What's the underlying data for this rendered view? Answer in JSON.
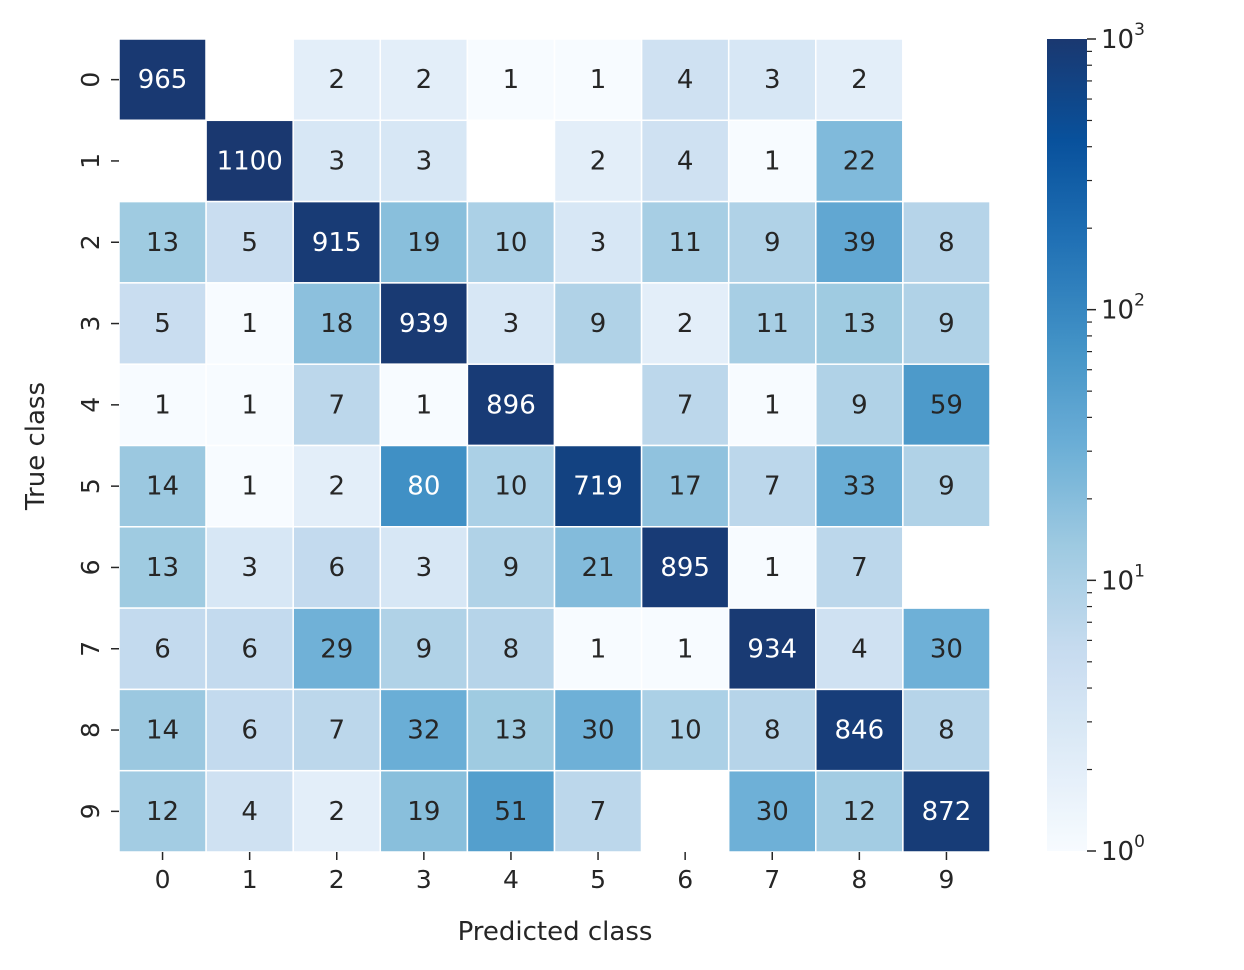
{
  "chart_data": {
    "type": "heatmap",
    "title": "",
    "xlabel": "Predicted class",
    "ylabel": "True class",
    "x_categories": [
      "0",
      "1",
      "2",
      "3",
      "4",
      "5",
      "6",
      "7",
      "8",
      "9"
    ],
    "y_categories": [
      "0",
      "1",
      "2",
      "3",
      "4",
      "5",
      "6",
      "7",
      "8",
      "9"
    ],
    "values": [
      [
        965,
        0,
        2,
        2,
        1,
        1,
        4,
        3,
        2,
        0
      ],
      [
        0,
        1100,
        3,
        3,
        0,
        2,
        4,
        1,
        22,
        0
      ],
      [
        13,
        5,
        915,
        19,
        10,
        3,
        11,
        9,
        39,
        8
      ],
      [
        5,
        1,
        18,
        939,
        3,
        9,
        2,
        11,
        13,
        9
      ],
      [
        1,
        1,
        7,
        1,
        896,
        0,
        7,
        1,
        9,
        59
      ],
      [
        14,
        1,
        2,
        80,
        10,
        719,
        17,
        7,
        33,
        9
      ],
      [
        13,
        3,
        6,
        3,
        9,
        21,
        895,
        1,
        7,
        0
      ],
      [
        6,
        6,
        29,
        9,
        8,
        1,
        1,
        934,
        4,
        30
      ],
      [
        14,
        6,
        7,
        32,
        13,
        30,
        10,
        8,
        846,
        8
      ],
      [
        12,
        4,
        2,
        19,
        51,
        7,
        0,
        30,
        12,
        872
      ]
    ],
    "zero_cells_blank": true,
    "color_scale": "log",
    "colormap": "Blues",
    "colormap_stops": [
      "#f7fbff",
      "#deebf7",
      "#c6dbef",
      "#9ecae1",
      "#6baed6",
      "#4292c6",
      "#2171b5",
      "#08519c",
      "#08306b"
    ],
    "colormap_max_color": "#1a3870",
    "vmin": 1,
    "vmax": 1000,
    "colorbar": {
      "ticks": [
        {
          "base": "10",
          "exp": "3",
          "value": 1000
        },
        {
          "base": "10",
          "exp": "2",
          "value": 100
        },
        {
          "base": "10",
          "exp": "1",
          "value": 10
        },
        {
          "base": "10",
          "exp": "0",
          "value": 1
        }
      ]
    },
    "grid": false,
    "legend": "colorbar-right"
  }
}
